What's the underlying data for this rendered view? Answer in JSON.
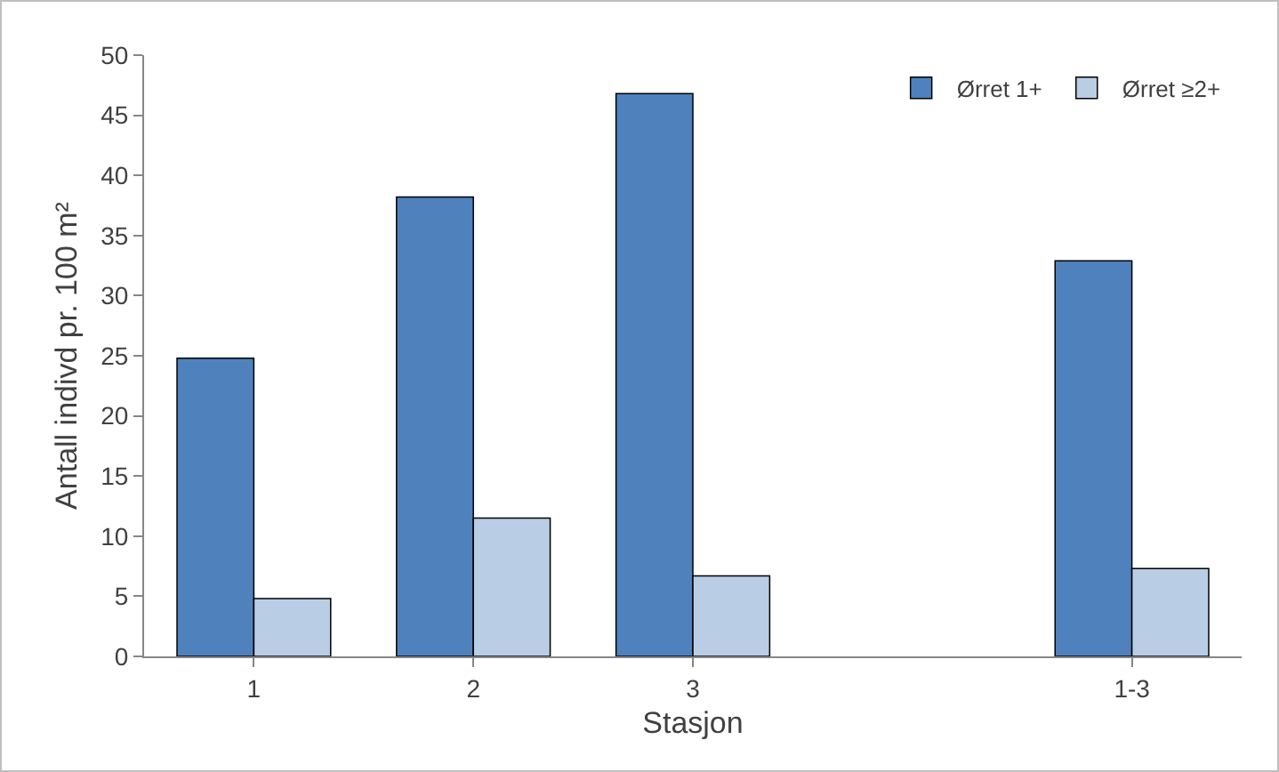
{
  "chart_data": {
    "type": "bar",
    "xlabel": "Stasjon",
    "ylabel": "Antall indivd pr. 100 m²",
    "categories": [
      "1",
      "2",
      "3",
      null,
      "1-3"
    ],
    "series": [
      {
        "name": "Ørret 1+",
        "color": "#4f81bd",
        "values": [
          24.8,
          38.2,
          46.8,
          null,
          32.9
        ]
      },
      {
        "name": "Ørret ≥2+",
        "color": "#b9cde5",
        "values": [
          4.8,
          11.5,
          6.7,
          null,
          7.3
        ]
      }
    ],
    "ylim": [
      0,
      50
    ],
    "yticks": [
      0,
      5,
      10,
      15,
      20,
      25,
      30,
      35,
      40,
      45,
      50
    ],
    "grid": false,
    "legend": "top right"
  }
}
